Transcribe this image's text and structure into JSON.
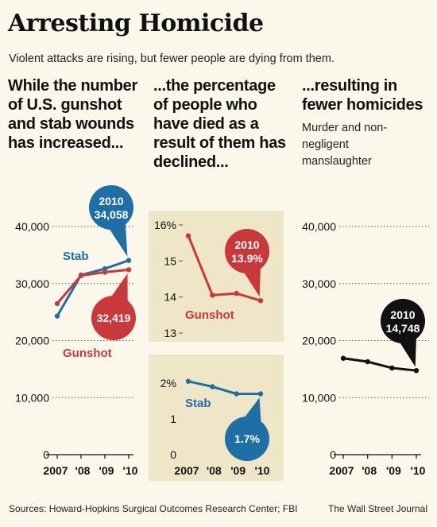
{
  "header": {
    "title": "Arresting Homicide",
    "subtitle": "Violent attacks are rising, but fewer people are dying from them."
  },
  "columns": [
    {
      "heading": "While the number of U.S. gunshot and stab wounds has increased..."
    },
    {
      "heading": "...the percentage of people who have died as a result of them has declined..."
    },
    {
      "heading": "...resulting in fewer homicides",
      "subheading": "Murder and non-negligent manslaughter"
    }
  ],
  "footer": {
    "source": "Sources: Howard-Hopkins Surgical Outcomes Research Center; FBI",
    "publisher": "The Wall Street Journal"
  },
  "colors": {
    "stab": "#1f6fa6",
    "gunshot": "#c9383a",
    "homicide": "#111111",
    "panel": "#efe6c8",
    "background": "#fbf7ea"
  },
  "chart_data": [
    {
      "type": "line",
      "categories": [
        "2007",
        "'08",
        "'09",
        "'10"
      ],
      "series": [
        {
          "name": "Stab",
          "values": [
            24300,
            31500,
            32600,
            34058
          ]
        },
        {
          "name": "Gunshot",
          "values": [
            26500,
            31400,
            32000,
            32419
          ]
        }
      ],
      "ylim": [
        0,
        40000
      ],
      "yticks": [
        "0",
        "10,000",
        "20,000",
        "30,000",
        "40,000"
      ],
      "grid": true,
      "callouts": [
        {
          "series": "Stab",
          "lines": [
            "2010",
            "34,058"
          ]
        },
        {
          "series": "Gunshot",
          "lines": [
            "32,419"
          ]
        }
      ]
    },
    {
      "type": "line",
      "categories": [
        "2007",
        "'08",
        "'09",
        "'10"
      ],
      "series": [
        {
          "name": "Gunshot",
          "values": [
            15.7,
            14.05,
            14.1,
            13.9
          ]
        }
      ],
      "ylim": [
        13,
        16
      ],
      "yticks": [
        "13",
        "14",
        "15",
        "16%"
      ],
      "callouts": [
        {
          "series": "Gunshot",
          "lines": [
            "2010",
            "13.9%"
          ]
        }
      ]
    },
    {
      "type": "line",
      "categories": [
        "2007",
        "'08",
        "'09",
        "'10"
      ],
      "series": [
        {
          "name": "Stab",
          "values": [
            2.05,
            1.9,
            1.7,
            1.7
          ]
        }
      ],
      "ylim": [
        0,
        2
      ],
      "yticks": [
        "0",
        "1",
        "2%"
      ],
      "callouts": [
        {
          "series": "Stab",
          "lines": [
            "1.7%"
          ]
        }
      ]
    },
    {
      "type": "line",
      "categories": [
        "2007",
        "'08",
        "'09",
        "'10"
      ],
      "series": [
        {
          "name": "",
          "values": [
            16900,
            16300,
            15200,
            14748
          ]
        }
      ],
      "ylim": [
        0,
        40000
      ],
      "yticks": [
        "0",
        "10,000",
        "20,000",
        "30,000",
        "40,000"
      ],
      "grid": true,
      "callouts": [
        {
          "series": "",
          "lines": [
            "2010",
            "14,748"
          ]
        }
      ]
    }
  ]
}
